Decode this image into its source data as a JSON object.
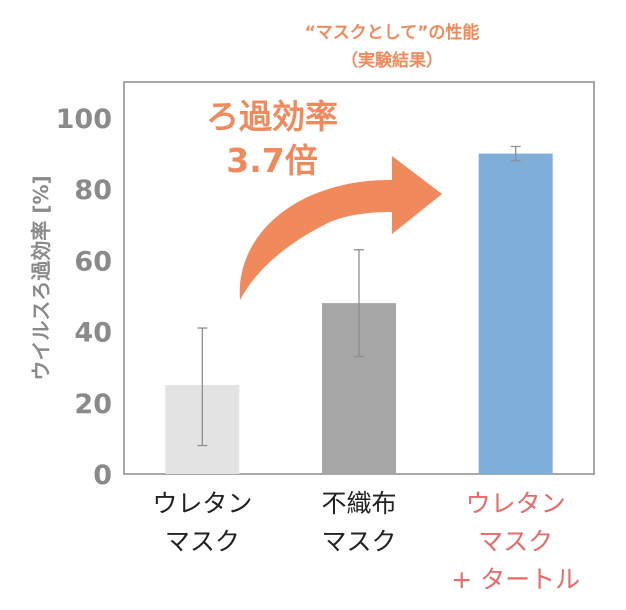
{
  "chart_data": {
    "type": "bar",
    "title": "“マスクとして”の性能",
    "subtitle": "（実験結果）",
    "ylabel": "ウイルスろ過効率 [%]",
    "ylim": [
      0,
      100
    ],
    "yticks": [
      "0",
      "20",
      "40",
      "60",
      "80",
      "100"
    ],
    "grid": false,
    "categories": [
      [
        "ウレタン",
        "マスク"
      ],
      [
        "不織布",
        "マスク"
      ],
      [
        "ウレタン",
        "マスク",
        "+ タートル"
      ]
    ],
    "values": [
      25,
      48,
      90
    ],
    "error_low": [
      8,
      33,
      88
    ],
    "error_high": [
      41,
      63,
      92
    ],
    "bar_colors": [
      "#E3E3E3",
      "#A6A6A6",
      "#80AEDA"
    ],
    "annotation": {
      "line1": "ろ過効率",
      "line2": "3.7倍",
      "arrow_color": "#F08A5D"
    }
  }
}
